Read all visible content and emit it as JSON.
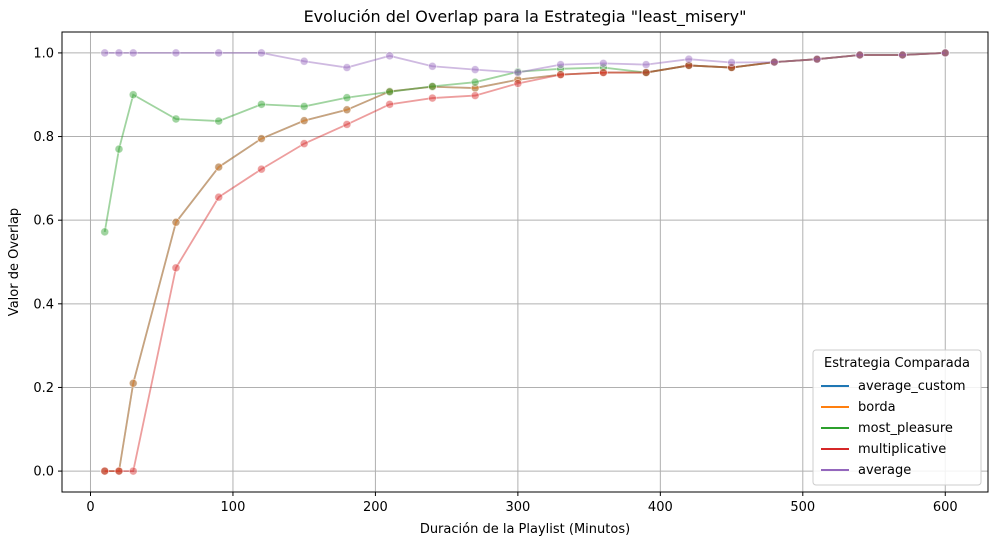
{
  "chart_data": {
    "type": "line",
    "title": "Evolución del Overlap para la Estrategia \"least_misery\"",
    "xlabel": "Duración de la Playlist (Minutos)",
    "ylabel": "Valor de Overlap",
    "xlim": [
      -20,
      630
    ],
    "ylim": [
      -0.05,
      1.05
    ],
    "xticks": [
      0,
      100,
      200,
      300,
      400,
      500,
      600
    ],
    "yticks": [
      0.0,
      0.2,
      0.4,
      0.6,
      0.8,
      1.0
    ],
    "xtick_labels": [
      "0",
      "100",
      "200",
      "300",
      "400",
      "500",
      "600"
    ],
    "ytick_labels": [
      "0.0",
      "0.2",
      "0.4",
      "0.6",
      "0.8",
      "1.0"
    ],
    "grid": true,
    "legend_title": "Estrategia Comparada",
    "legend_position": "lower-right",
    "x": [
      10,
      20,
      30,
      60,
      90,
      120,
      150,
      180,
      210,
      240,
      270,
      300,
      330,
      360,
      390,
      420,
      450,
      480,
      510,
      540,
      570,
      600
    ],
    "series": [
      {
        "name": "average_custom",
        "color": "#1f77b4",
        "values": [
          0.0,
          0.0,
          0.21,
          0.595,
          0.727,
          0.795,
          0.838,
          0.864,
          0.908,
          0.919,
          0.916,
          0.936,
          0.948,
          0.953,
          0.953,
          0.97,
          0.965,
          0.978,
          0.985,
          0.995,
          0.995,
          1.0
        ]
      },
      {
        "name": "borda",
        "color": "#ff7f0e",
        "values": [
          0.0,
          0.0,
          0.21,
          0.595,
          0.727,
          0.795,
          0.838,
          0.864,
          0.908,
          0.919,
          0.916,
          0.936,
          0.948,
          0.953,
          0.953,
          0.97,
          0.965,
          0.978,
          0.985,
          0.995,
          0.995,
          1.0
        ]
      },
      {
        "name": "most_pleasure",
        "color": "#2ca02c",
        "values": [
          0.572,
          0.77,
          0.9,
          0.842,
          0.837,
          0.877,
          0.872,
          0.893,
          0.907,
          0.92,
          0.93,
          0.955,
          0.962,
          0.965,
          0.953,
          0.97,
          0.965,
          0.978,
          0.985,
          0.995,
          0.995,
          1.0
        ]
      },
      {
        "name": "multiplicative",
        "color": "#d62728",
        "values": [
          0.0,
          0.0,
          0.0,
          0.486,
          0.655,
          0.722,
          0.783,
          0.829,
          0.877,
          0.892,
          0.898,
          0.927,
          0.948,
          0.953,
          0.953,
          0.97,
          0.965,
          0.978,
          0.985,
          0.995,
          0.995,
          1.0
        ]
      },
      {
        "name": "average",
        "color": "#9467bd",
        "values": [
          1.0,
          1.0,
          1.0,
          1.0,
          1.0,
          1.0,
          0.98,
          0.965,
          0.993,
          0.968,
          0.96,
          0.953,
          0.972,
          0.975,
          0.972,
          0.985,
          0.977,
          0.978,
          0.985,
          0.995,
          0.995,
          1.0
        ]
      }
    ]
  }
}
